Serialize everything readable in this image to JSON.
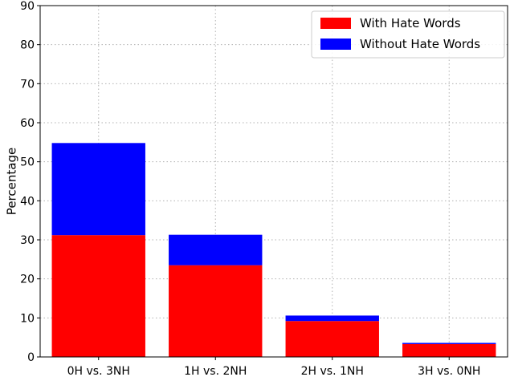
{
  "chart_data": {
    "type": "bar",
    "stacked": true,
    "categories": [
      "0H vs. 3NH",
      "1H vs. 2NH",
      "2H vs. 1NH",
      "3H vs. 0NH"
    ],
    "series": [
      {
        "name": "With Hate Words",
        "color": "#ff0000",
        "values": [
          31.2,
          23.5,
          9.2,
          3.3
        ]
      },
      {
        "name": "Without Hate Words",
        "color": "#0000ff",
        "values": [
          23.6,
          7.8,
          1.4,
          0.3
        ]
      }
    ],
    "ylabel": "Percentage",
    "xlabel": "",
    "ylim": [
      0,
      90
    ],
    "yticks": [
      0,
      10,
      20,
      30,
      40,
      50,
      60,
      70,
      80,
      90
    ],
    "grid": true,
    "legend_position": "top-right"
  }
}
